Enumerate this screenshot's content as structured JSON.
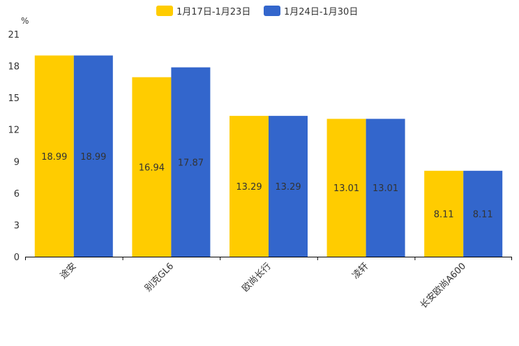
{
  "chart_data": {
    "type": "bar",
    "unit_label": "%",
    "categories": [
      "途安",
      "别克GL6",
      "欧尚长行",
      "凌轩",
      "长安欧尚A600"
    ],
    "series": [
      {
        "name": "1月17日-1月23日",
        "values": [
          18.99,
          16.94,
          13.29,
          13.01,
          8.11
        ],
        "color": "#FFCC00"
      },
      {
        "name": "1月24日-1月30日",
        "values": [
          18.99,
          17.87,
          13.29,
          13.01,
          8.11
        ],
        "color": "#3366CC"
      }
    ],
    "yticks": [
      0,
      3,
      6,
      9,
      12,
      15,
      18,
      21
    ],
    "ylim": [
      0,
      21
    ],
    "grid": false,
    "legend_position": "top-center"
  }
}
